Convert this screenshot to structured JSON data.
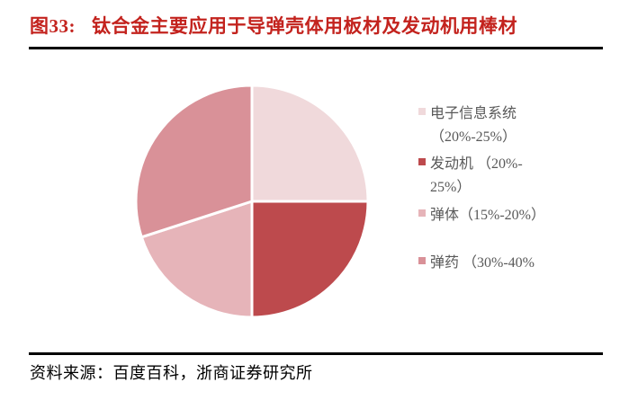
{
  "title": {
    "prefix": "图33:",
    "text": "钛合金主要应用于导弹壳体用板材及发动机用棒材"
  },
  "source": {
    "text": "资料来源：百度百科，浙商证券研究所"
  },
  "colors": {
    "title_red": "#C3231E",
    "rule_black": "#000000",
    "legend_text_gray": "#595959",
    "background": "#FFFFFF",
    "slice_separator": "#FFFFFF"
  },
  "legend": {
    "items": [
      {
        "lines": [
          "电子信息系统",
          "（20%-25%）"
        ],
        "color": "#F0D9DB"
      },
      {
        "lines": [
          "发动机 （20%-",
          "25%）"
        ],
        "color": "#BD4A4D"
      },
      {
        "lines": [
          "弹体（15%-20%）",
          ""
        ],
        "color": "#E6B4B9"
      },
      {
        "lines": [
          "弹药 （30%-40%",
          ""
        ],
        "color": "#D99198"
      }
    ]
  },
  "chart_data": {
    "type": "pie",
    "title": "图33: 钛合金主要应用于导弹壳体用板材及发动机用棒材",
    "legend_position": "right",
    "start_angle_deg": 0,
    "direction": "clockwise",
    "slices": [
      {
        "label": "电子信息系统",
        "range_label": "20%-25%",
        "plotted_share": 25,
        "color": "#F0D9DB"
      },
      {
        "label": "发动机",
        "range_label": "20%-25%",
        "plotted_share": 25,
        "color": "#BD4A4D"
      },
      {
        "label": "弹体",
        "range_label": "15%-20%",
        "plotted_share": 20,
        "color": "#E6B4B9"
      },
      {
        "label": "弹药",
        "range_label": "30%-40%",
        "plotted_share": 30,
        "color": "#D99198"
      }
    ]
  }
}
